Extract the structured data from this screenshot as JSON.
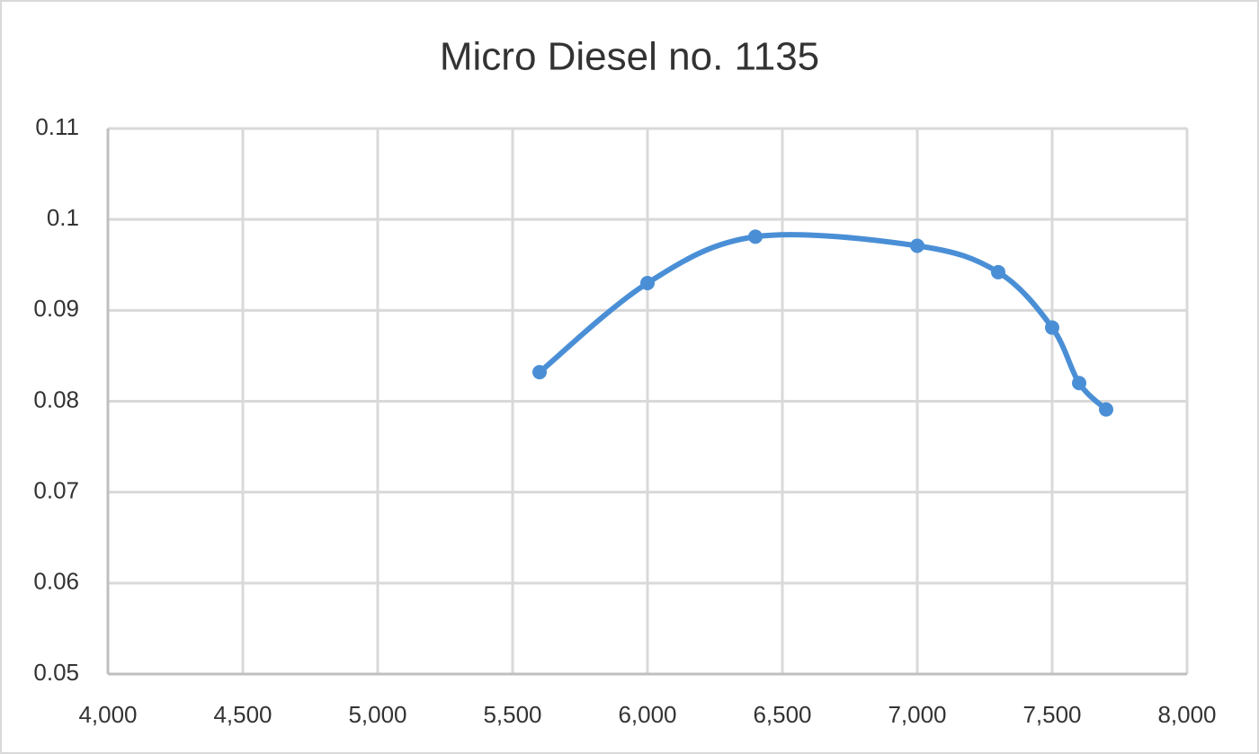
{
  "chart_data": {
    "type": "scatter-line",
    "title": "Micro Diesel no. 1135",
    "x": [
      5600,
      6000,
      6400,
      7000,
      7300,
      7500,
      7600,
      7700
    ],
    "series": [
      {
        "color": "#4a8fd6",
        "values": [
          0.0832,
          0.093,
          0.0981,
          0.0971,
          0.0942,
          0.0881,
          0.082,
          0.0791
        ]
      }
    ],
    "xlim": [
      4000,
      8000
    ],
    "xticks": [
      {
        "value": 4000,
        "label": "4,000"
      },
      {
        "value": 4500,
        "label": "4,500"
      },
      {
        "value": 5000,
        "label": "5,000"
      },
      {
        "value": 5500,
        "label": "5,500"
      },
      {
        "value": 6000,
        "label": "6,000"
      },
      {
        "value": 6500,
        "label": "6,500"
      },
      {
        "value": 7000,
        "label": "7,000"
      },
      {
        "value": 7500,
        "label": "7,500"
      },
      {
        "value": 8000,
        "label": "8,000"
      }
    ],
    "ylim": [
      0.05,
      0.11
    ],
    "yticks": [
      0.05,
      0.06,
      0.07,
      0.08,
      0.09,
      0.1,
      0.11
    ],
    "grid": true,
    "smooth": true
  }
}
